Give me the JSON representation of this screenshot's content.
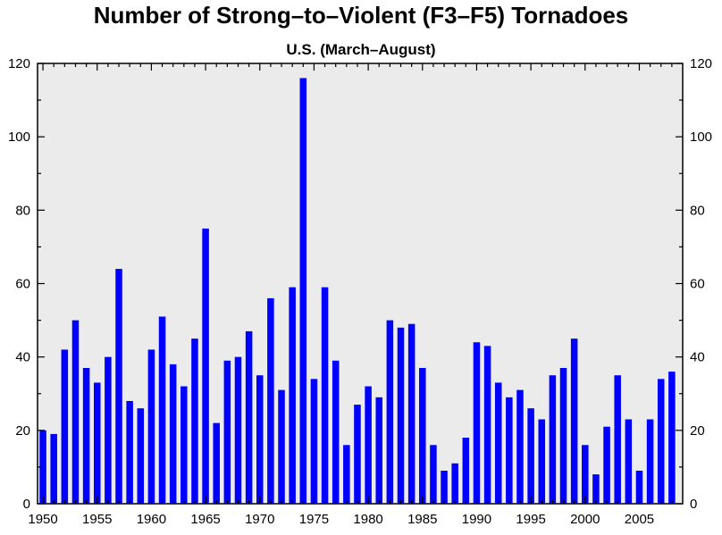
{
  "chart_data": {
    "type": "bar",
    "title": "Number of Strong–to–Violent (F3–F5) Tornadoes",
    "subtitle": "U.S. (March–August)",
    "xlabel": "",
    "ylabel": "",
    "x": [
      1950,
      1951,
      1952,
      1953,
      1954,
      1955,
      1956,
      1957,
      1958,
      1959,
      1960,
      1961,
      1962,
      1963,
      1964,
      1965,
      1966,
      1967,
      1968,
      1969,
      1970,
      1971,
      1972,
      1973,
      1974,
      1975,
      1976,
      1977,
      1978,
      1979,
      1980,
      1981,
      1982,
      1983,
      1984,
      1985,
      1986,
      1987,
      1988,
      1989,
      1990,
      1991,
      1992,
      1993,
      1994,
      1995,
      1996,
      1997,
      1998,
      1999,
      2000,
      2001,
      2002,
      2003,
      2004,
      2005,
      2006,
      2007,
      2008
    ],
    "values": [
      20,
      19,
      42,
      50,
      37,
      33,
      40,
      64,
      28,
      26,
      42,
      51,
      38,
      32,
      45,
      75,
      22,
      39,
      40,
      47,
      35,
      56,
      31,
      59,
      116,
      34,
      59,
      39,
      16,
      27,
      32,
      29,
      50,
      48,
      49,
      37,
      16,
      9,
      11,
      18,
      44,
      43,
      33,
      29,
      31,
      26,
      23,
      35,
      37,
      45,
      16,
      8,
      21,
      35,
      23,
      9,
      23,
      34,
      36
    ],
    "xlim": [
      1949.5,
      2009
    ],
    "ylim": [
      0,
      120
    ],
    "x_ticks": [
      "1950",
      "1955",
      "1960",
      "1965",
      "1970",
      "1975",
      "1980",
      "1985",
      "1990",
      "1995",
      "2000",
      "2005"
    ],
    "y_ticks": [
      "0",
      "20",
      "40",
      "60",
      "80",
      "100",
      "120"
    ],
    "bar_color": "#0000ff",
    "plot_background": "#ebebeb",
    "grid": false,
    "legend": "none",
    "right_axis_mirrored": true
  }
}
